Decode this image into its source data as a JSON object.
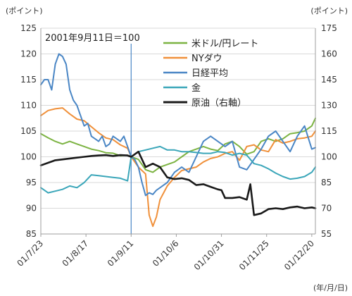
{
  "chart_data": {
    "type": "line",
    "left_unit": "(ポイント)",
    "right_unit": "(ポイント)",
    "x_unit": "(年/月/日)",
    "annotation": "2001年9月11日＝100",
    "event_date": "01/9/11",
    "left_axis": {
      "ylim": [
        85,
        125
      ],
      "ticks": [
        "85",
        "90",
        "95",
        "100",
        "105",
        "110",
        "115",
        "120",
        "125"
      ]
    },
    "right_axis": {
      "ylim": [
        55,
        175
      ],
      "ticks": [
        "55",
        "70",
        "85",
        "100",
        "115",
        "130",
        "145",
        "160",
        "175"
      ]
    },
    "x_ticks": [
      "01/7/23",
      "01/8/17",
      "01/9/11",
      "01/10/6",
      "01/10/31",
      "01/11/25",
      "01/12/20"
    ],
    "x_tick_days": [
      0,
      25,
      50,
      75,
      100,
      125,
      150
    ],
    "grid": "horizontal",
    "legend_position": "top-right",
    "series": [
      {
        "name": "米ドル/円レート",
        "axis": "left",
        "color": "#7cb342",
        "x": [
          0,
          4,
          8,
          12,
          16,
          20,
          24,
          28,
          32,
          36,
          40,
          44,
          48,
          50,
          54,
          58,
          62,
          66,
          70,
          74,
          78,
          82,
          86,
          90,
          94,
          98,
          102,
          106,
          110,
          114,
          118,
          122,
          126,
          130,
          134,
          138,
          142,
          146,
          150,
          152
        ],
        "y": [
          104.5,
          103.7,
          103,
          102.5,
          103,
          102.5,
          102,
          101.5,
          101.2,
          100.8,
          100.7,
          100.2,
          100.3,
          100,
          99.5,
          97.5,
          97,
          98,
          98.5,
          99,
          100,
          101,
          101.5,
          102,
          101.5,
          101.2,
          102.5,
          103,
          102,
          100.5,
          101,
          103,
          103.5,
          103,
          103.5,
          104.5,
          104.7,
          105,
          106,
          107.5
        ]
      },
      {
        "name": "NYダウ",
        "axis": "right",
        "color": "#f0903a",
        "x": [
          0,
          4,
          8,
          12,
          16,
          20,
          24,
          28,
          32,
          36,
          40,
          44,
          48,
          50,
          54,
          58,
          60,
          62,
          64,
          66,
          70,
          74,
          78,
          82,
          86,
          90,
          94,
          98,
          102,
          106,
          110,
          114,
          118,
          122,
          126,
          130,
          134,
          138,
          142,
          146,
          150,
          152
        ],
        "y": [
          124,
          127,
          128,
          128.5,
          125,
          122,
          121,
          117.5,
          114,
          111,
          110,
          107,
          105,
          100,
          94,
          90,
          66,
          59.5,
          65,
          75,
          83,
          88,
          92,
          93,
          94,
          97,
          99,
          100,
          102,
          103,
          98,
          106,
          107,
          104,
          103,
          110,
          108,
          109,
          110.5,
          111,
          112,
          115
        ]
      },
      {
        "name": "日経平均",
        "axis": "left",
        "color": "#4a86c5",
        "x": [
          0,
          2,
          4,
          6,
          8,
          10,
          12,
          14,
          16,
          18,
          20,
          22,
          24,
          26,
          28,
          30,
          32,
          34,
          36,
          38,
          40,
          42,
          44,
          46,
          48,
          50,
          52,
          54,
          56,
          58,
          60,
          62,
          64,
          66,
          68,
          70,
          74,
          78,
          82,
          86,
          90,
          94,
          98,
          102,
          106,
          110,
          114,
          118,
          122,
          126,
          130,
          134,
          138,
          142,
          146,
          150,
          152
        ],
        "y": [
          114,
          115,
          115,
          113,
          118,
          120,
          119.5,
          118,
          113,
          111,
          110,
          108,
          106,
          106.5,
          104,
          103.5,
          103,
          104,
          102,
          102.5,
          104,
          103.5,
          103,
          104,
          102,
          100,
          99.5,
          98,
          95,
          92.5,
          93,
          92.7,
          93.5,
          94,
          94.5,
          95,
          97,
          98,
          97,
          100,
          103,
          104,
          103,
          102,
          103,
          98,
          97.5,
          99.5,
          101.5,
          104,
          105,
          103,
          101,
          104,
          106,
          101.5,
          101.8
        ]
      },
      {
        "name": "金",
        "axis": "right",
        "color": "#3aa6b9",
        "x": [
          0,
          4,
          8,
          12,
          16,
          20,
          24,
          28,
          32,
          36,
          40,
          44,
          48,
          50,
          54,
          58,
          62,
          66,
          70,
          74,
          78,
          82,
          86,
          90,
          94,
          98,
          102,
          106,
          110,
          114,
          118,
          122,
          126,
          130,
          134,
          138,
          142,
          146,
          150,
          152
        ],
        "y": [
          82,
          79,
          80,
          81,
          83,
          82,
          85,
          89.5,
          89,
          88.5,
          88,
          87.5,
          86,
          100,
          103,
          104,
          105,
          106,
          104,
          104,
          103,
          103,
          102.5,
          102,
          102,
          103,
          102.5,
          101,
          102,
          101,
          96,
          95,
          93,
          90.5,
          88.5,
          87,
          87.5,
          88.5,
          91,
          94
        ]
      },
      {
        "name": "原油（右軸）",
        "axis": "right",
        "color": "#1a1a1a",
        "x": [
          0,
          4,
          8,
          12,
          16,
          20,
          24,
          28,
          32,
          36,
          40,
          44,
          48,
          50,
          54,
          58,
          62,
          66,
          70,
          74,
          78,
          82,
          86,
          90,
          94,
          98,
          100,
          102,
          106,
          110,
          114,
          116,
          118,
          122,
          126,
          130,
          134,
          138,
          142,
          146,
          150,
          152
        ],
        "y": [
          95,
          96.5,
          98,
          98.5,
          99,
          99.5,
          100,
          100.5,
          100.8,
          101,
          100.5,
          101,
          100.8,
          100,
          103,
          94,
          96,
          94,
          88,
          87,
          87.5,
          86.5,
          83.5,
          84,
          82.5,
          81,
          80.5,
          76,
          76,
          76.5,
          75,
          84,
          66,
          67,
          69.5,
          70,
          69.5,
          70.5,
          71,
          70,
          70.5,
          70
        ]
      }
    ]
  }
}
